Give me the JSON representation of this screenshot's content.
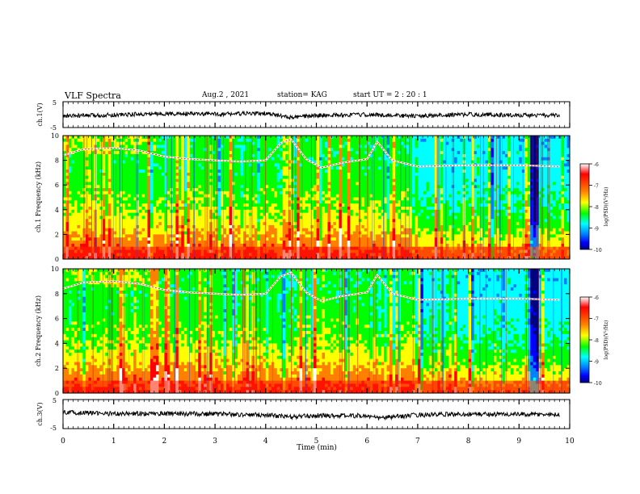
{
  "header": {
    "title": "VLF Spectra",
    "date": "Aug.2 , 2021",
    "station": "station= KAG",
    "start": "start UT = 2 : 20 : 1"
  },
  "chart_data": [
    {
      "type": "line",
      "panel": "ch.1 waveform",
      "ylabel": "ch.1(V)",
      "ylim": [
        -5,
        5
      ],
      "yticks": [
        "5",
        "-5"
      ],
      "xlim": [
        0,
        10
      ],
      "series": [
        {
          "x": [
            0,
            1,
            2,
            3,
            4,
            4.5,
            5,
            6,
            7,
            8,
            9,
            9.8
          ],
          "y": [
            -0.6,
            -0.1,
            0.4,
            0.2,
            0.5,
            -1.2,
            -0.3,
            0.0,
            -0.6,
            0.1,
            -0.2,
            -0.4
          ]
        }
      ]
    },
    {
      "type": "heatmap",
      "panel": "ch.1 spectrogram",
      "ylabel": "ch.1 Frequency (kHz)",
      "ylim": [
        0,
        10
      ],
      "yticks": [
        "0",
        "2",
        "4",
        "6",
        "8",
        "10"
      ],
      "xlim": [
        0,
        10
      ],
      "colorbar": {
        "label": "log(PSD)(V²/Hz)",
        "range": [
          -10,
          -6
        ],
        "ticks": [
          "-6",
          "-7",
          "-8",
          "-9",
          "-10"
        ]
      },
      "transmitter_trace": {
        "x": [
          0,
          0.4,
          1.0,
          1.5,
          2.0,
          2.5,
          3.0,
          3.5,
          4.0,
          4.3,
          4.5,
          4.8,
          5.1,
          5.5,
          6.0,
          6.2,
          6.5,
          6.7,
          7.0,
          8.0,
          9.0,
          9.8
        ],
        "y": [
          8.4,
          8.9,
          9.0,
          8.8,
          8.3,
          8.1,
          8.0,
          7.9,
          8.0,
          9.4,
          9.7,
          8.1,
          7.4,
          7.8,
          8.1,
          9.5,
          8.0,
          7.8,
          7.5,
          7.6,
          7.6,
          7.5
        ]
      }
    },
    {
      "type": "heatmap",
      "panel": "ch.2 spectrogram",
      "ylabel": "ch.2 Frequency (kHz)",
      "ylim": [
        0,
        10
      ],
      "yticks": [
        "0",
        "2",
        "4",
        "6",
        "8",
        "10"
      ],
      "xlim": [
        0,
        10
      ],
      "colorbar": {
        "label": "log(PSD)(V²/Hz)",
        "range": [
          -10,
          -6
        ],
        "ticks": [
          "-6",
          "-7",
          "-8",
          "-9",
          "-10"
        ]
      },
      "transmitter_trace": {
        "x": [
          0,
          0.4,
          1.0,
          1.5,
          2.0,
          2.5,
          3.0,
          3.5,
          4.0,
          4.3,
          4.5,
          4.8,
          5.1,
          5.5,
          6.0,
          6.2,
          6.5,
          6.7,
          7.0,
          8.0,
          9.0,
          9.8
        ],
        "y": [
          8.4,
          8.9,
          9.0,
          8.8,
          8.3,
          8.1,
          8.0,
          7.9,
          8.0,
          9.4,
          9.7,
          8.1,
          7.4,
          7.8,
          8.1,
          9.5,
          8.0,
          7.8,
          7.5,
          7.6,
          7.6,
          7.5
        ]
      }
    },
    {
      "type": "line",
      "panel": "ch.3 waveform",
      "ylabel": "ch.3(V)",
      "ylim": [
        -5,
        5
      ],
      "yticks": [
        "5",
        "-5"
      ],
      "xlim": [
        0,
        10
      ],
      "xlabel": "Time (min)",
      "xticks": [
        "0",
        "1",
        "2",
        "3",
        "4",
        "5",
        "6",
        "7",
        "8",
        "9",
        "10"
      ],
      "series": [
        {
          "x": [
            0,
            1,
            2,
            3,
            4,
            4.5,
            5,
            6,
            6.2,
            7,
            8,
            9,
            9.8
          ],
          "y": [
            0.6,
            0.1,
            0.2,
            0.0,
            -0.3,
            -1.0,
            -0.5,
            -0.6,
            -1.4,
            -0.3,
            0.0,
            -0.1,
            -0.2
          ]
        }
      ]
    }
  ],
  "colors": {
    "scale": [
      "#000080",
      "#0000ff",
      "#0080ff",
      "#00ffff",
      "#00ff00",
      "#ffff00",
      "#ff8000",
      "#ff0000",
      "#ffffff"
    ],
    "trace": "#ffffff",
    "waveform": "#000000"
  }
}
